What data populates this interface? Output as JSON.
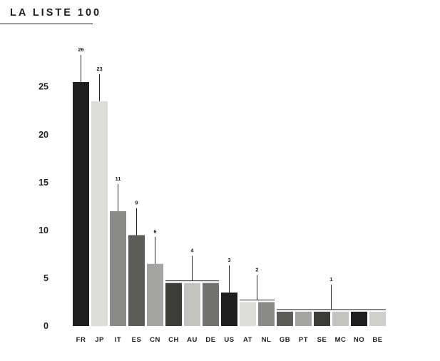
{
  "header": {
    "title": "LA LISTE 100"
  },
  "chart_data": {
    "type": "bar",
    "title": "LA LISTE 100",
    "xlabel": "",
    "ylabel": "",
    "ylim": [
      0,
      26
    ],
    "yticks": [
      0,
      5,
      10,
      15,
      20,
      25
    ],
    "grid": false,
    "categories": [
      "FR",
      "JP",
      "IT",
      "ES",
      "CN",
      "CH",
      "AU",
      "DE",
      "US",
      "AT",
      "NL",
      "GB",
      "PT",
      "SE",
      "MC",
      "NO",
      "BE"
    ],
    "values": [
      26,
      23,
      11,
      9,
      6,
      4,
      4,
      4,
      3,
      2,
      2,
      1,
      1,
      1,
      1,
      1,
      1
    ],
    "displayed_values": [
      25.5,
      23.5,
      12,
      9.5,
      6.5,
      4.5,
      4.5,
      4.5,
      3.5,
      2.5,
      2.5,
      1.5,
      1.5,
      1.5,
      1.5,
      1.5,
      1.5
    ],
    "bar_colors": [
      "#1e1e1e",
      "#dcdcdb",
      "#8a8a89",
      "#5c5c5b",
      "#a3a3a2",
      "#3c3c3b",
      "#c3c3c2",
      "#717170",
      "#1e1e1e",
      "#dcdcdb",
      "#8a8a89",
      "#5c5c5b",
      "#a3a3a2",
      "#3c3c3b",
      "#c3c3c2",
      "#1e1e1e",
      "#cfcfce"
    ],
    "annotations": [
      {
        "label": "26",
        "bars": [
          0
        ]
      },
      {
        "label": "23",
        "bars": [
          1
        ]
      },
      {
        "label": "11",
        "bars": [
          2
        ]
      },
      {
        "label": "9",
        "bars": [
          3
        ]
      },
      {
        "label": "6",
        "bars": [
          4
        ]
      },
      {
        "label": "4",
        "bars": [
          5,
          6,
          7
        ]
      },
      {
        "label": "3",
        "bars": [
          8
        ]
      },
      {
        "label": "2",
        "bars": [
          9,
          10
        ]
      },
      {
        "label": "1",
        "bars": [
          11,
          12,
          13,
          14,
          15,
          16
        ]
      }
    ]
  }
}
